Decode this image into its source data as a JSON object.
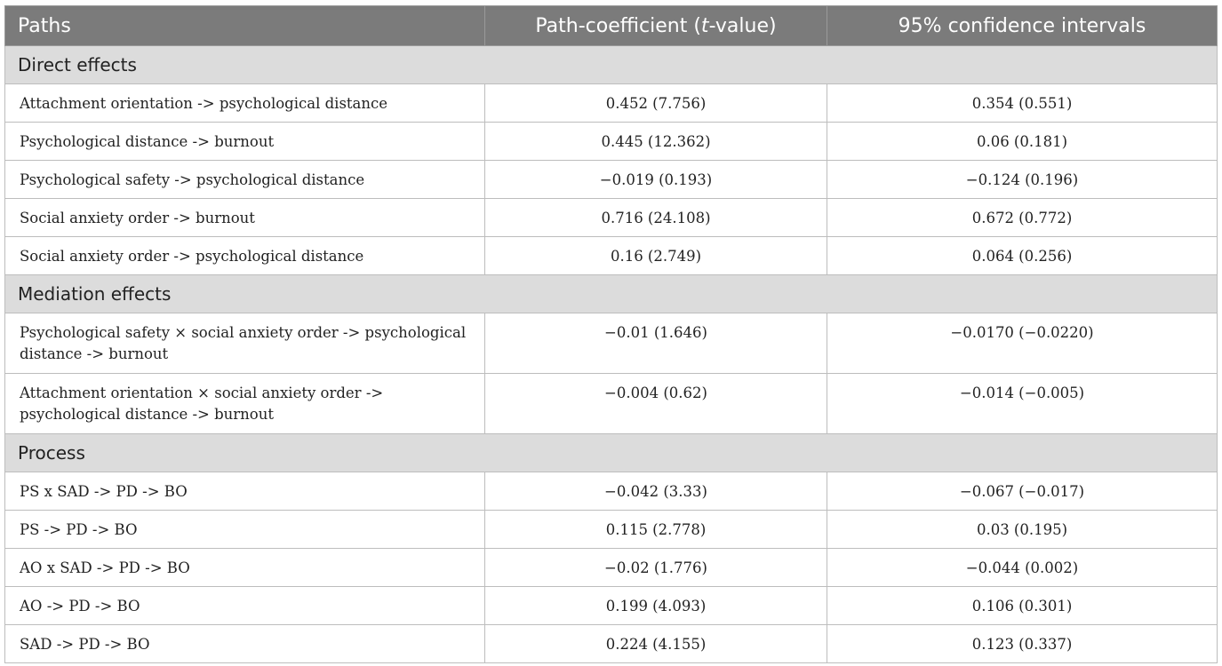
{
  "header": {
    "col_paths": "Paths",
    "col_coef_pre": "Path-coefficient (",
    "col_coef_ital": "t",
    "col_coef_post": "-value)",
    "col_ci": "95% confidence intervals"
  },
  "sections": [
    {
      "title": "Direct effects",
      "rows": [
        {
          "path": "Attachment orientation -> psychological distance",
          "coef": "0.452 (7.756)",
          "ci": "0.354 (0.551)"
        },
        {
          "path": "Psychological distance -> burnout",
          "coef": "0.445 (12.362)",
          "ci": "0.06 (0.181)"
        },
        {
          "path": "Psychological safety -> psychological distance",
          "coef": "−0.019 (0.193)",
          "ci": "−0.124 (0.196)"
        },
        {
          "path": "Social anxiety order -> burnout",
          "coef": "0.716 (24.108)",
          "ci": "0.672 (0.772)"
        },
        {
          "path": "Social anxiety order -> psychological distance",
          "coef": "0.16 (2.749)",
          "ci": "0.064 (0.256)"
        }
      ]
    },
    {
      "title": "Mediation effects",
      "rows": [
        {
          "path": "Psychological safety × social anxiety order -> psychological distance -> burnout",
          "coef": "−0.01 (1.646)",
          "ci": "−0.0170 (−0.0220)"
        },
        {
          "path": "Attachment orientation × social anxiety order -> psychological distance -> burnout",
          "coef": "−0.004 (0.62)",
          "ci": "−0.014 (−0.005)"
        }
      ]
    },
    {
      "title": "Process",
      "rows": [
        {
          "path": "PS x SAD -> PD -> BO",
          "coef": "−0.042 (3.33)",
          "ci": "−0.067 (−0.017)"
        },
        {
          "path": "PS -> PD -> BO",
          "coef": "0.115 (2.778)",
          "ci": "0.03 (0.195)"
        },
        {
          "path": "AO x SAD -> PD -> BO",
          "coef": "−0.02 (1.776)",
          "ci": "−0.044 (0.002)"
        },
        {
          "path": "AO -> PD -> BO",
          "coef": "0.199 (4.093)",
          "ci": "0.106 (0.301)"
        },
        {
          "path": "SAD -> PD -> BO",
          "coef": "0.224 (4.155)",
          "ci": "0.123 (0.337)"
        }
      ]
    }
  ]
}
